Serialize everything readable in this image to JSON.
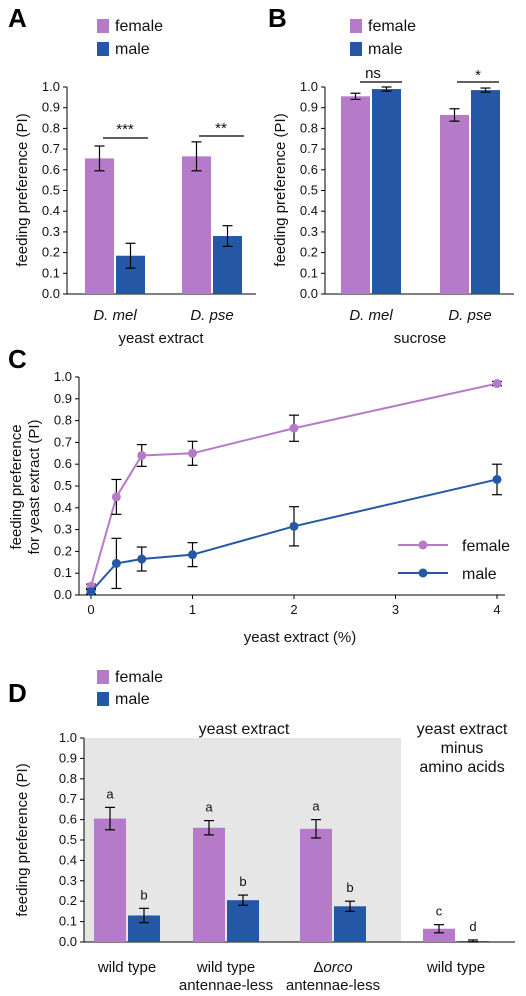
{
  "colors": {
    "female": "#B57BC8",
    "male": "#2457A6",
    "shade": "#E6E6E6"
  },
  "panels": {
    "A": {
      "letter": "A",
      "ylabel": "feeding preference (PI)",
      "xlabel": "yeast extract",
      "legend": [
        "female",
        "male"
      ],
      "yticks": [
        "0.0",
        "0.1",
        "0.2",
        "0.3",
        "0.4",
        "0.5",
        "0.6",
        "0.7",
        "0.8",
        "0.9",
        "1.0"
      ],
      "species": [
        "D. mel",
        "D. pse"
      ],
      "sig": [
        "***",
        "**"
      ]
    },
    "B": {
      "letter": "B",
      "ylabel": "feeding preference (PI)",
      "xlabel": "sucrose",
      "legend": [
        "female",
        "male"
      ],
      "yticks": [
        "0.0",
        "0.1",
        "0.2",
        "0.3",
        "0.4",
        "0.5",
        "0.6",
        "0.7",
        "0.8",
        "0.9",
        "1.0"
      ],
      "species": [
        "D. mel",
        "D. pse"
      ],
      "sig": [
        "ns",
        "*"
      ]
    },
    "C": {
      "letter": "C",
      "ylabel_line1": "feeding preference",
      "ylabel_line2": "for yeast extract (PI)",
      "xlabel": "yeast extract (%)",
      "legend": [
        "female",
        "male"
      ],
      "yticks": [
        "0.0",
        "0.1",
        "0.2",
        "0.3",
        "0.4",
        "0.5",
        "0.6",
        "0.7",
        "0.8",
        "0.9",
        "1.0"
      ],
      "xticks": [
        "0",
        "1",
        "2",
        "3",
        "4"
      ]
    },
    "D": {
      "letter": "D",
      "ylabel": "feeding preference (PI)",
      "legend": [
        "female",
        "male"
      ],
      "yticks": [
        "0.0",
        "0.1",
        "0.2",
        "0.3",
        "0.4",
        "0.5",
        "0.6",
        "0.7",
        "0.8",
        "0.9",
        "1.0"
      ],
      "group_label_1": "yeast extract",
      "group_label_2": [
        "yeast extract",
        "minus",
        "amino acids"
      ],
      "categories": [
        {
          "line1": "wild type",
          "line2": ""
        },
        {
          "line1": "wild type",
          "line2": "antennae-less"
        },
        {
          "line1": "Δorco",
          "line2": "antennae-less"
        },
        {
          "line1": "wild type",
          "line2": ""
        }
      ],
      "letters": [
        [
          "a",
          "b"
        ],
        [
          "a",
          "b"
        ],
        [
          "a",
          "b"
        ],
        [
          "c",
          "d"
        ]
      ]
    }
  },
  "chart_data": [
    {
      "panel": "A",
      "type": "bar",
      "categories": [
        "D. mel",
        "D. pse"
      ],
      "series": [
        {
          "name": "female",
          "values": [
            0.655,
            0.665
          ],
          "err": [
            0.06,
            0.07
          ]
        },
        {
          "name": "male",
          "values": [
            0.185,
            0.28
          ],
          "err": [
            0.06,
            0.05
          ]
        }
      ],
      "ylim": [
        0,
        1.0
      ],
      "ylabel": "feeding preference (PI)",
      "xlabel": "yeast extract"
    },
    {
      "panel": "B",
      "type": "bar",
      "categories": [
        "D. mel",
        "D. pse"
      ],
      "series": [
        {
          "name": "female",
          "values": [
            0.955,
            0.865
          ],
          "err": [
            0.015,
            0.03
          ]
        },
        {
          "name": "male",
          "values": [
            0.99,
            0.985
          ],
          "err": [
            0.01,
            0.01
          ]
        }
      ],
      "ylim": [
        0,
        1.0
      ],
      "ylabel": "feeding preference (PI)",
      "xlabel": "sucrose"
    },
    {
      "panel": "C",
      "type": "line",
      "x": [
        0,
        0.25,
        0.5,
        1,
        2,
        4
      ],
      "series": [
        {
          "name": "female",
          "values": [
            0.04,
            0.45,
            0.64,
            0.65,
            0.765,
            0.97
          ],
          "err": [
            0.01,
            0.08,
            0.05,
            0.055,
            0.06,
            0.01
          ]
        },
        {
          "name": "male",
          "values": [
            0.015,
            0.145,
            0.165,
            0.185,
            0.315,
            0.53
          ],
          "err": [
            0.01,
            0.115,
            0.055,
            0.055,
            0.09,
            0.07
          ]
        }
      ],
      "xlim": [
        0,
        4
      ],
      "ylim": [
        0,
        1.0
      ],
      "ylabel": "feeding preference for yeast extract (PI)",
      "xlabel": "yeast extract (%)"
    },
    {
      "panel": "D",
      "type": "bar",
      "categories": [
        "wild type",
        "wild type antennae-less",
        "Δorco antennae-less",
        "wild type"
      ],
      "series": [
        {
          "name": "female",
          "values": [
            0.605,
            0.56,
            0.555,
            0.065
          ],
          "err": [
            0.055,
            0.035,
            0.045,
            0.02
          ]
        },
        {
          "name": "male",
          "values": [
            0.13,
            0.205,
            0.175,
            0.005
          ],
          "err": [
            0.035,
            0.025,
            0.025,
            0.005
          ]
        }
      ],
      "ylim": [
        0,
        1.0
      ],
      "ylabel": "feeding preference (PI)"
    }
  ]
}
